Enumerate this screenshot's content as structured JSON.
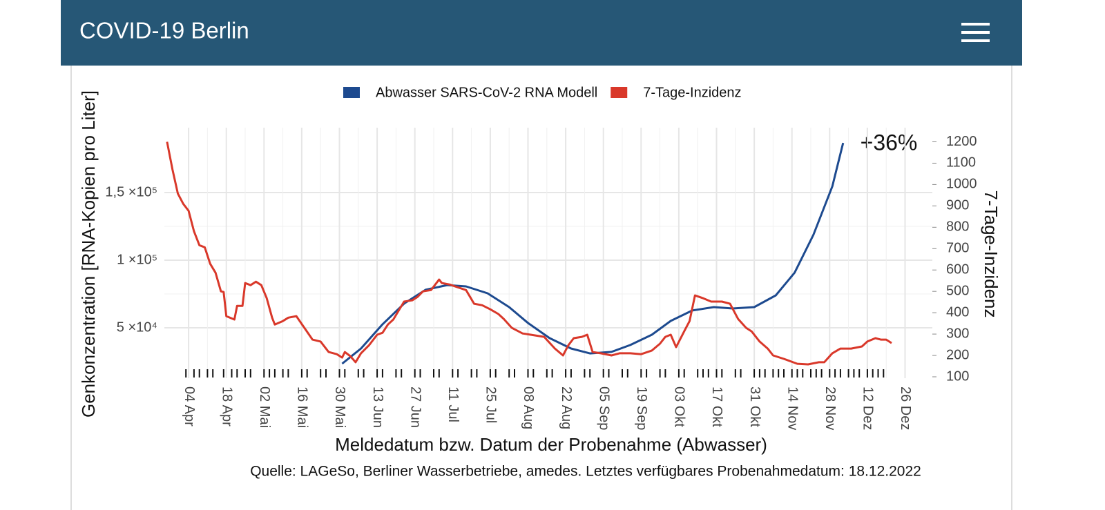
{
  "header": {
    "title": "COVID-19 Berlin"
  },
  "chart_data": {
    "type": "line",
    "annotation": "+36%",
    "xlabel": "Meldedatum bzw. Datum der Probenahme (Abwasser)",
    "ylabel": "Genkonzentration [RNA-Kopien pro Liter]",
    "y2label": "7-Tage-Inzidenz",
    "source": "Quelle: LAGeSo, Berliner Wasserbetriebe, amedes. Letztes verfügbares Probenahmedatum: 18.12.2022",
    "xlim": [
      "26 Mär",
      "31 Dez"
    ],
    "xticks": [
      "04 Apr",
      "18 Apr",
      "02 Mai",
      "16 Mai",
      "30 Mai",
      "13 Jun",
      "27 Jun",
      "11 Jul",
      "25 Jul",
      "08 Aug",
      "22 Aug",
      "05 Sep",
      "19 Sep",
      "03 Okt",
      "17 Okt",
      "31 Okt",
      "14 Nov",
      "28 Nov",
      "12 Dez",
      "26 Dez"
    ],
    "ylim": [
      13800,
      195400
    ],
    "yticks": [
      {
        "value": 50000,
        "label": "5 ×10⁴"
      },
      {
        "value": 100000,
        "label": "1 ×10⁵"
      },
      {
        "value": 150000,
        "label": "1,5 ×10⁵"
      }
    ],
    "y2lim": [
      100,
      1250
    ],
    "y2ticks": [
      100,
      200,
      300,
      400,
      500,
      600,
      700,
      800,
      900,
      1000,
      1100,
      1200
    ],
    "grid": true,
    "legend": "top",
    "sample_dates": [
      "03 Apr",
      "06 Apr",
      "08 Apr",
      "11 Apr",
      "13 Apr",
      "17 Apr",
      "20 Apr",
      "22 Apr",
      "25 Apr",
      "27 Apr",
      "02 Mai",
      "04 Mai",
      "06 Mai",
      "09 Mai",
      "11 Mai",
      "16 Mai",
      "18 Mai",
      "23 Mai",
      "25 Mai",
      "30 Mai",
      "01 Jun",
      "06 Jun",
      "08 Jun",
      "13 Jun",
      "15 Jun",
      "20 Jun",
      "22 Jun",
      "27 Jun",
      "29 Jun",
      "04 Jul",
      "06 Jul",
      "11 Jul",
      "13 Jul",
      "18 Jul",
      "20 Jul",
      "25 Jul",
      "27 Jul",
      "01 Aug",
      "03 Aug",
      "08 Aug",
      "10 Aug",
      "15 Aug",
      "17 Aug",
      "22 Aug",
      "24 Aug",
      "29 Aug",
      "31 Aug",
      "05 Sep",
      "07 Sep",
      "12 Sep",
      "14 Sep",
      "19 Sep",
      "21 Sep",
      "26 Sep",
      "28 Sep",
      "03 Okt",
      "05 Okt",
      "10 Okt",
      "12 Okt",
      "14 Okt",
      "17 Okt",
      "19 Okt",
      "24 Okt",
      "26 Okt",
      "31 Okt",
      "02 Nov",
      "04 Nov",
      "07 Nov",
      "09 Nov",
      "11 Nov",
      "14 Nov",
      "16 Nov",
      "18 Nov",
      "21 Nov",
      "23 Nov",
      "25 Nov",
      "28 Nov",
      "30 Nov",
      "02 Dez",
      "05 Dez",
      "07 Dez",
      "09 Dez",
      "12 Dez",
      "14 Dez",
      "16 Dez",
      "18 Dez"
    ],
    "series": [
      {
        "name": "Abwasser SARS-CoV-2 RNA Modell",
        "color": "#1d4a8f",
        "axis": "y",
        "x": [
          "31 Mai",
          "07 Jun",
          "15 Jun",
          "23 Jun",
          "01 Jul",
          "09 Jul",
          "16 Jul",
          "24 Jul",
          "01 Aug",
          "08 Aug",
          "16 Aug",
          "24 Aug",
          "31 Aug",
          "08 Sep",
          "15 Sep",
          "23 Sep",
          "30 Sep",
          "08 Okt",
          "16 Okt",
          "23 Okt",
          "31 Okt",
          "08 Nov",
          "15 Nov",
          "22 Nov",
          "29 Nov",
          "03 Dez"
        ],
        "values": [
          23500,
          34700,
          52600,
          67900,
          78100,
          81600,
          80600,
          75500,
          65300,
          53600,
          42400,
          34700,
          31100,
          32200,
          37300,
          44900,
          55100,
          62800,
          65300,
          64300,
          65300,
          74000,
          90800,
          118900,
          154600,
          186700
        ]
      },
      {
        "name": "7-Tage-Inzidenz",
        "color": "#d9382a",
        "axis": "y2",
        "x": [
          "27 Mär",
          "29 Mär",
          "31 Mär",
          "02 Apr",
          "04 Apr",
          "06 Apr",
          "08 Apr",
          "10 Apr",
          "12 Apr",
          "14 Apr",
          "16 Apr",
          "17 Apr",
          "18 Apr",
          "21 Apr",
          "22 Apr",
          "24 Apr",
          "25 Apr",
          "27 Apr",
          "29 Apr",
          "01 Mai",
          "03 Mai",
          "05 Mai",
          "06 Mai",
          "09 Mai",
          "11 Mai",
          "14 Mai",
          "17 Mai",
          "20 Mai",
          "23 Mai",
          "26 Mai",
          "29 Mai",
          "31 Mai",
          "01 Jun",
          "03 Jun",
          "05 Jun",
          "07 Jun",
          "10 Jun",
          "13 Jun",
          "15 Jun",
          "17 Jun",
          "19 Jun",
          "21 Jun",
          "23 Jun",
          "26 Jun",
          "28 Jun",
          "30 Jun",
          "03 Jul",
          "06 Jul",
          "07 Jul",
          "10 Jul",
          "12 Jul",
          "16 Jul",
          "19 Jul",
          "22 Jul",
          "25 Jul",
          "28 Jul",
          "30 Jul",
          "02 Aug",
          "06 Aug",
          "09 Aug",
          "14 Aug",
          "18 Aug",
          "21 Aug",
          "23 Aug",
          "25 Aug",
          "28 Aug",
          "30 Aug",
          "01 Sep",
          "04 Sep",
          "08 Sep",
          "11 Sep",
          "15 Sep",
          "19 Sep",
          "23 Sep",
          "26 Sep",
          "28 Sep",
          "30 Sep",
          "02 Okt",
          "05 Okt",
          "07 Okt",
          "09 Okt",
          "12 Okt",
          "15 Okt",
          "19 Okt",
          "22 Okt",
          "25 Okt",
          "28 Okt",
          "30 Okt",
          "02 Nov",
          "05 Nov",
          "07 Nov",
          "11 Nov",
          "16 Nov",
          "20 Nov",
          "24 Nov",
          "26 Nov",
          "29 Nov",
          "02 Dez",
          "06 Dez",
          "10 Dez",
          "12 Dez",
          "15 Dez",
          "17 Dez",
          "19 Dez",
          "21 Dez"
        ],
        "values": [
          1200,
          1071,
          958,
          910,
          877,
          781,
          716,
          706,
          629,
          587,
          500,
          497,
          384,
          368,
          432,
          432,
          539,
          529,
          545,
          529,
          468,
          377,
          345,
          361,
          377,
          384,
          329,
          274,
          265,
          216,
          206,
          190,
          216,
          197,
          168,
          210,
          248,
          297,
          306,
          345,
          368,
          410,
          452,
          458,
          474,
          500,
          506,
          555,
          539,
          532,
          523,
          506,
          442,
          435,
          416,
          394,
          371,
          329,
          303,
          297,
          287,
          232,
          200,
          248,
          281,
          287,
          297,
          216,
          210,
          200,
          210,
          210,
          206,
          223,
          255,
          287,
          297,
          239,
          313,
          361,
          481,
          468,
          452,
          452,
          442,
          371,
          329,
          313,
          265,
          232,
          200,
          184,
          161,
          158,
          168,
          168,
          210,
          232,
          232,
          242,
          265,
          281,
          274,
          274,
          258
        ]
      }
    ]
  }
}
